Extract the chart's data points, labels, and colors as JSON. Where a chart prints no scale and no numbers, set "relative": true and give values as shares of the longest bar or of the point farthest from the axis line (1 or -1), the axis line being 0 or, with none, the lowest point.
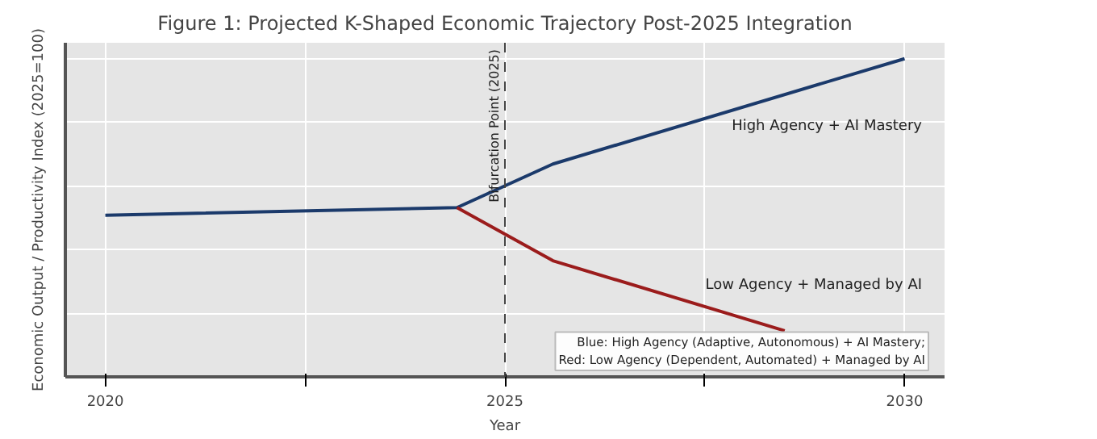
{
  "chart_data": {
    "type": "line",
    "title": "Figure 1: Projected K-Shaped Economic Trajectory Post-2025 Integration",
    "xlabel": "Year",
    "ylabel": "Economic Output / Productivity Index (2025=100)",
    "relative": true,
    "xlim": [
      2019.5,
      2030.5
    ],
    "xticks": [
      2020,
      {
        "value": 2022.5,
        "label": null
      },
      2025,
      {
        "value": 2027.5,
        "label": null
      },
      2030
    ],
    "grid": true,
    "line_style": "solid",
    "marker": "none",
    "series": [
      {
        "name": "High Agency + AI Mastery",
        "color": "#1b3a6b",
        "x": [
          2020,
          2024.4,
          2025.6,
          2030
        ],
        "values": [
          0.508,
          0.532,
          0.669,
          1
        ]
      },
      {
        "name": "Low Agency + Managed by AI",
        "color": "#9b1c1c",
        "x": [
          2024.4,
          2025.6,
          2028.5
        ],
        "values": [
          0.532,
          0.365,
          0.145
        ]
      }
    ],
    "ref_lines": [
      {
        "axis": "x",
        "value": 2025,
        "label": "Bifurcation Point (2025)",
        "color": "#444444",
        "line_style": "dashed"
      }
    ],
    "annotations": [
      "Blue: High Agency (Adaptive, Autonomous) + AI Mastery;\nRed: Low Agency (Dependent, Automated) + Managed by AI"
    ]
  }
}
